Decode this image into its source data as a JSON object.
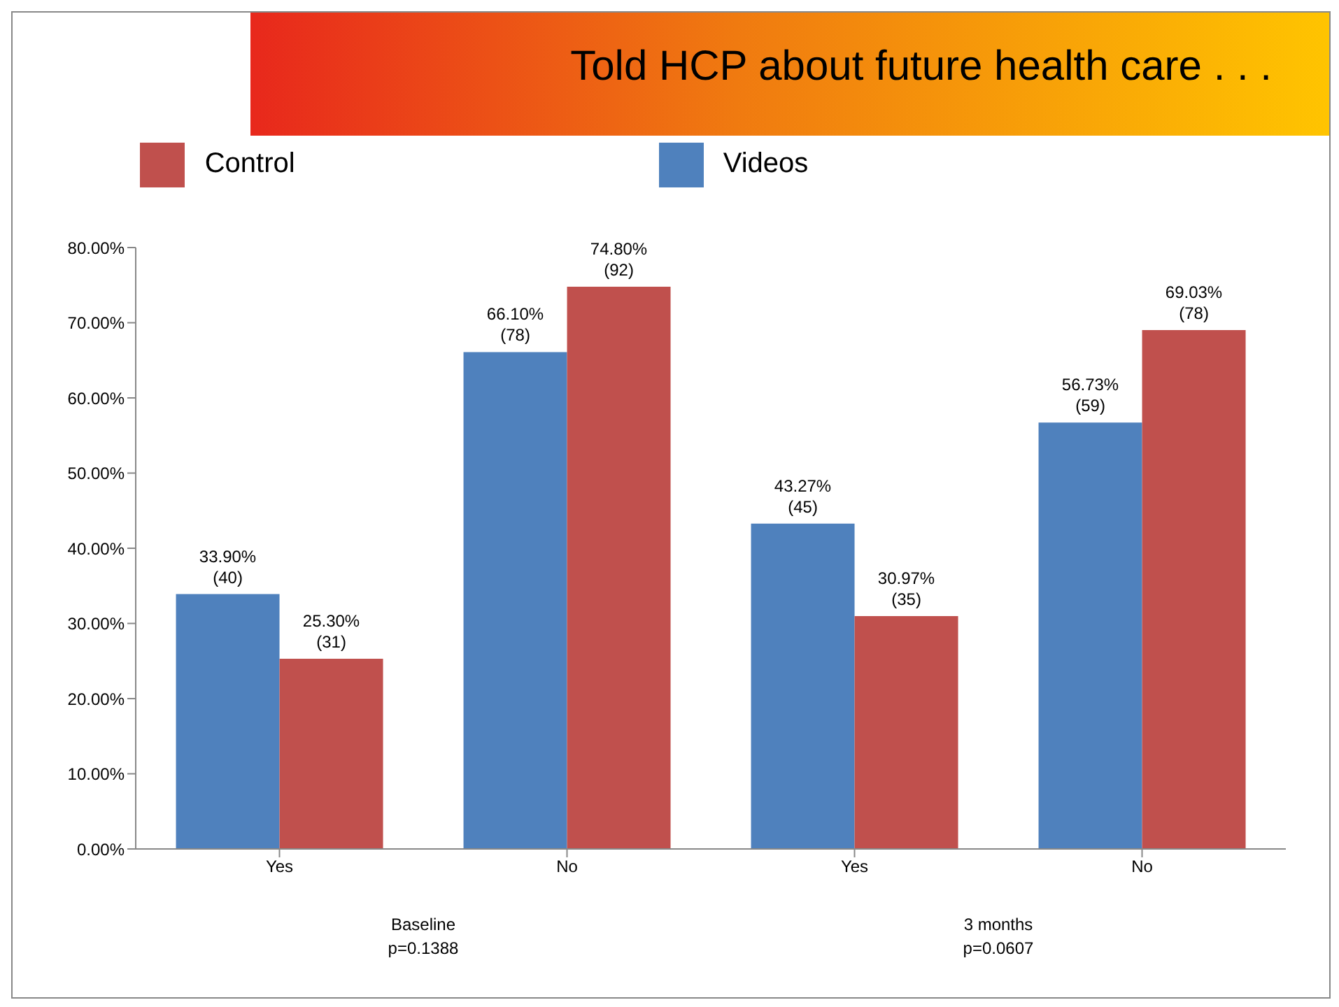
{
  "chart_data": {
    "type": "bar",
    "title": "Told HCP about future health care . . .",
    "categories": [
      "Yes",
      "No",
      "Yes",
      "No"
    ],
    "series": [
      {
        "name": "Videos",
        "color": "#4f81bd",
        "values": [
          33.9,
          66.1,
          43.27,
          56.73
        ],
        "value_labels": [
          "33.90%\n(40)",
          "66.10%\n(78)",
          "43.27%\n(45)",
          "56.73%\n(59)"
        ]
      },
      {
        "name": "Control",
        "color": "#c0504d",
        "values": [
          25.3,
          74.8,
          30.97,
          69.03
        ],
        "value_labels": [
          "25.30%\n(31)",
          "74.80%\n(92)",
          "30.97%\n(35)",
          "69.03%\n(78)"
        ]
      }
    ],
    "ylim": [
      0,
      80
    ],
    "yticks": [
      {
        "value": 0,
        "label": "0.00%"
      },
      {
        "value": 10,
        "label": "10.00%"
      },
      {
        "value": 20,
        "label": "20.00%"
      },
      {
        "value": 30,
        "label": "30.00%"
      },
      {
        "value": 40,
        "label": "40.00%"
      },
      {
        "value": 50,
        "label": "50.00%"
      },
      {
        "value": 60,
        "label": "60.00%"
      },
      {
        "value": 70,
        "label": "70.00%"
      },
      {
        "value": 80,
        "label": "80.00%"
      }
    ],
    "annotations": [
      "Baseline",
      "p=0.1388",
      "3 months",
      "p=0.0607"
    ],
    "legend": "top",
    "grid": false
  }
}
